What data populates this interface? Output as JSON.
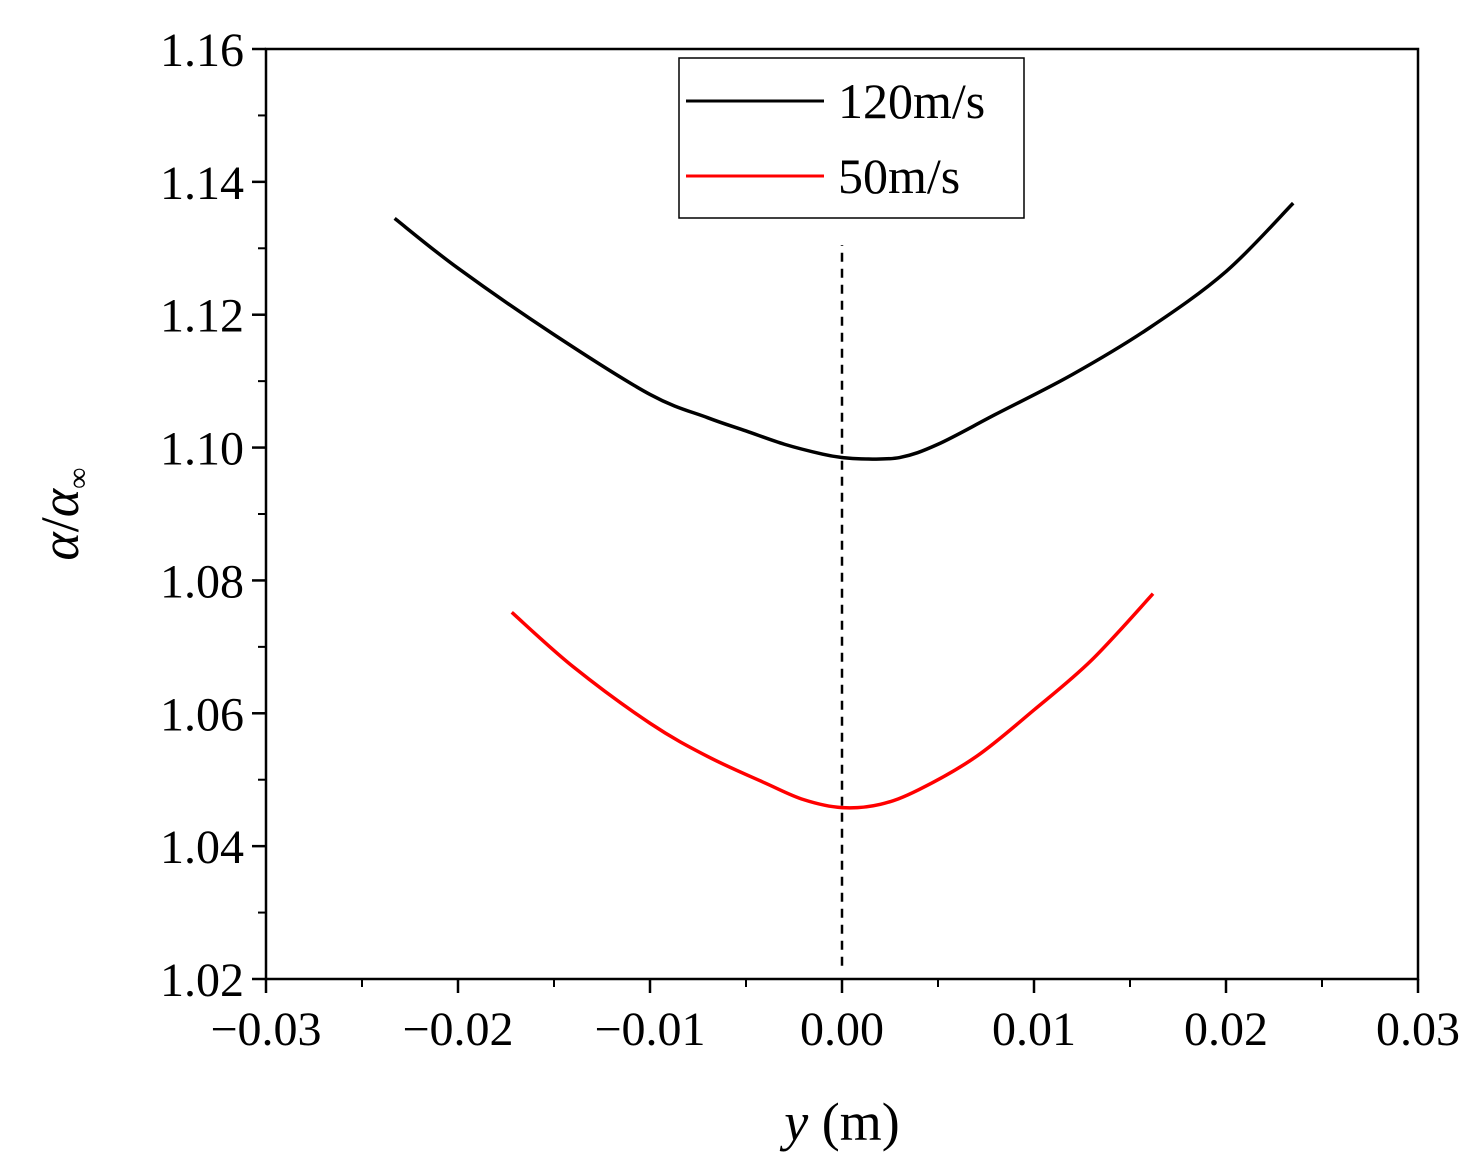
{
  "chart_data": {
    "type": "line",
    "title": "",
    "xlabel": {
      "var": "y",
      "unit": " (m)"
    },
    "ylabel": {
      "var": "α",
      "sep": "/",
      "sub_base": "α",
      "sub": "∞"
    },
    "xlim": [
      -0.03,
      0.03
    ],
    "ylim": [
      1.02,
      1.16
    ],
    "x_ticks": [
      -0.03,
      -0.02,
      -0.01,
      0.0,
      0.01,
      0.02,
      0.03
    ],
    "x_tick_labels": [
      "−0.03",
      "−0.02",
      "−0.01",
      "0.00",
      "0.01",
      "0.02",
      "0.03"
    ],
    "y_ticks": [
      1.02,
      1.04,
      1.06,
      1.08,
      1.1,
      1.12,
      1.14,
      1.16
    ],
    "y_tick_labels": [
      "1.02",
      "1.04",
      "1.06",
      "1.08",
      "1.10",
      "1.12",
      "1.14",
      "1.16"
    ],
    "grid": false,
    "legend_position": "top-center",
    "reference_line": {
      "x": 0.0,
      "y_range": [
        1.022,
        1.1305
      ],
      "style": "dashed",
      "color": "#000000"
    },
    "series": [
      {
        "name": "120m/s",
        "color": "#000000",
        "x": [
          -0.0233,
          -0.02,
          -0.015,
          -0.01,
          -0.007,
          -0.005,
          -0.003,
          -0.001,
          0.0,
          0.001,
          0.003,
          0.005,
          0.008,
          0.012,
          0.016,
          0.02,
          0.0235
        ],
        "y": [
          1.1345,
          1.127,
          1.117,
          1.108,
          1.1045,
          1.1025,
          1.1005,
          1.099,
          1.0985,
          1.0983,
          1.0985,
          1.1005,
          1.105,
          1.111,
          1.118,
          1.1265,
          1.1368
        ]
      },
      {
        "name": "50m/s",
        "color": "#ff0000",
        "x": [
          -0.0172,
          -0.014,
          -0.01,
          -0.007,
          -0.004,
          -0.002,
          0.0,
          0.002,
          0.004,
          0.007,
          0.01,
          0.013,
          0.0162
        ],
        "y": [
          1.0752,
          1.067,
          1.0585,
          1.0535,
          1.0495,
          1.047,
          1.0458,
          1.0463,
          1.0485,
          1.0535,
          1.0605,
          1.068,
          1.078
        ]
      }
    ]
  }
}
